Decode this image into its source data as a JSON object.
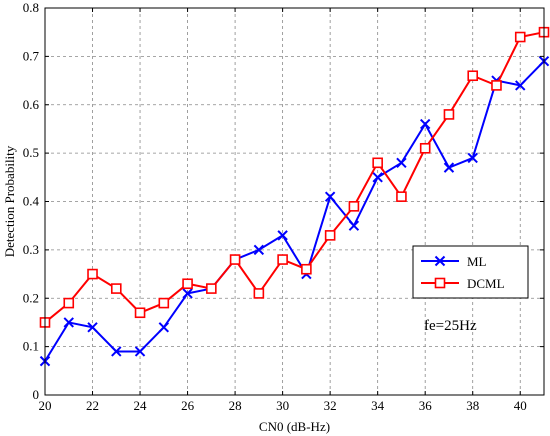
{
  "chart_data": {
    "type": "line",
    "xlabel": "CN0 (dB-Hz)",
    "ylabel": "Detection Probability",
    "xlim": [
      20,
      41
    ],
    "ylim": [
      0,
      0.8
    ],
    "xticks": [
      "20",
      "22",
      "24",
      "26",
      "28",
      "30",
      "32",
      "34",
      "36",
      "38",
      "40"
    ],
    "yticks": [
      "0",
      "0.1",
      "0.2",
      "0.3",
      "0.4",
      "0.5",
      "0.6",
      "0.7",
      "0.8"
    ],
    "grid": true,
    "legend_position": "right",
    "annotation": "fe=25Hz",
    "x": [
      20,
      21,
      22,
      23,
      24,
      25,
      26,
      27,
      28,
      29,
      30,
      31,
      32,
      33,
      34,
      35,
      36,
      37,
      38,
      39,
      40,
      41
    ],
    "series": [
      {
        "name": "ML",
        "color": "#0000ff",
        "marker": "x",
        "values": [
          0.07,
          0.15,
          0.14,
          0.09,
          0.09,
          0.14,
          0.21,
          0.22,
          0.28,
          0.3,
          0.33,
          0.25,
          0.41,
          0.35,
          0.45,
          0.48,
          0.56,
          0.47,
          0.49,
          0.65,
          0.64,
          0.69
        ]
      },
      {
        "name": "DCML",
        "color": "#ff0000",
        "marker": "square",
        "values": [
          0.15,
          0.19,
          0.25,
          0.22,
          0.17,
          0.19,
          0.23,
          0.22,
          0.28,
          0.21,
          0.28,
          0.26,
          0.33,
          0.39,
          0.48,
          0.41,
          0.51,
          0.58,
          0.66,
          0.64,
          0.74,
          0.75
        ]
      }
    ]
  }
}
